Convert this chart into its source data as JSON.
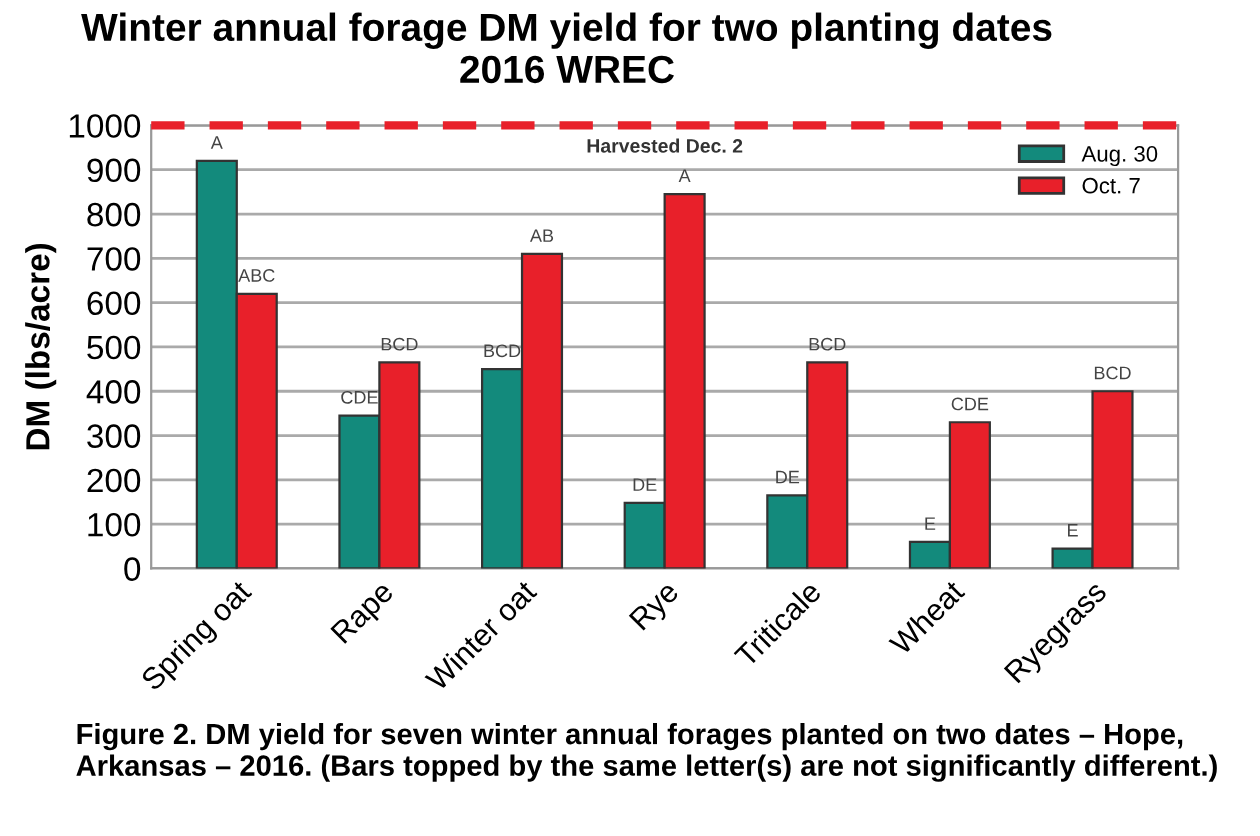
{
  "chart_data": {
    "type": "bar",
    "title": "Winter annual forage DM yield for two planting dates\n2016 WREC",
    "ylabel": "DM (lbs/acre)",
    "categories": [
      "Spring oat",
      "Rape",
      "Winter oat",
      "Rye",
      "Triticale",
      "Wheat",
      "Ryegrass"
    ],
    "series": [
      {
        "name": "Aug. 30",
        "color": "#138a7c",
        "values": [
          920,
          345,
          450,
          148,
          165,
          60,
          45
        ],
        "value_labels": [
          "A",
          "CDE",
          "BCD",
          "DE",
          "DE",
          "E",
          "E"
        ]
      },
      {
        "name": "Oct. 7",
        "color": "#e8202a",
        "values": [
          620,
          465,
          710,
          845,
          465,
          330,
          400
        ],
        "value_labels": [
          "ABC",
          "BCD",
          "AB",
          "A",
          "BCD",
          "CDE",
          "BCD"
        ]
      }
    ],
    "ylim": [
      0,
      1000
    ],
    "yticks": [
      0,
      100,
      200,
      300,
      400,
      500,
      600,
      700,
      800,
      900,
      1000
    ],
    "grid": "y",
    "legend": "top right",
    "ref_lines": [
      {
        "axis": "y",
        "value": 1000,
        "color": "#e8202a",
        "line_style": "dashed"
      }
    ],
    "annotations": [
      "Harvested Dec. 2",
      "Figure 2. DM yield for seven winter annual forages planted on two dates – Hope, Arkansas – 2016. (Bars topped by the same letter(s) are not significantly different.)"
    ]
  }
}
